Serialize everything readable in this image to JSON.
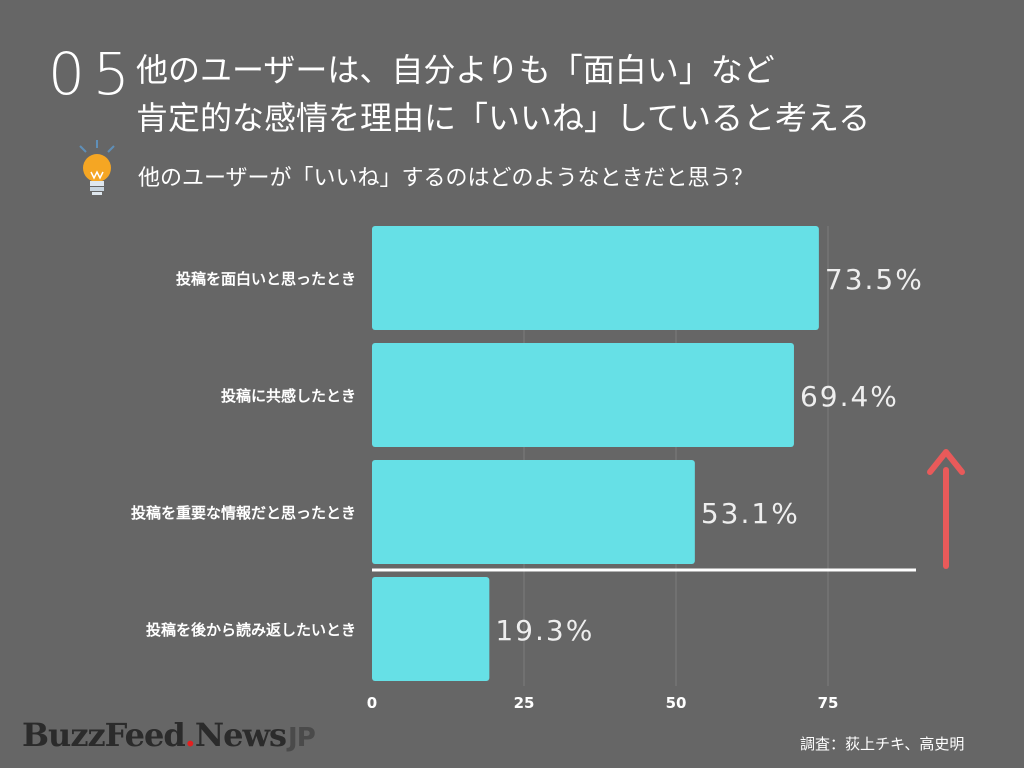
{
  "header": {
    "number": "05",
    "title": "他のユーザーは、自分よりも「面白い」など\n肯定的な感情を理由に「いいね」していると考える",
    "question": "他のユーザーが「いいね」するのはどのようなときだと思う？"
  },
  "chart_data": {
    "type": "bar",
    "orientation": "horizontal",
    "categories": [
      "投稿を面白いと思ったとき",
      "投稿に共感したとき",
      "投稿を重要な情報だと思ったとき",
      "投稿を後から読み返したいとき"
    ],
    "values": [
      73.5,
      69.4,
      53.1,
      19.3
    ],
    "value_labels": [
      "73.5%",
      "69.4%",
      "53.1%",
      "19.3%"
    ],
    "x_ticks": [
      0,
      25,
      50,
      75
    ],
    "xlim": [
      0,
      100
    ],
    "grid": true,
    "bar_color": "#66e0e6",
    "arrow_color": "#e85a5a"
  },
  "footer": {
    "logo_main": "BuzzFeed",
    "logo_dot": ".",
    "logo_news": "News",
    "logo_jp": "JP",
    "credit": "調査：荻上チキ、高史明"
  }
}
